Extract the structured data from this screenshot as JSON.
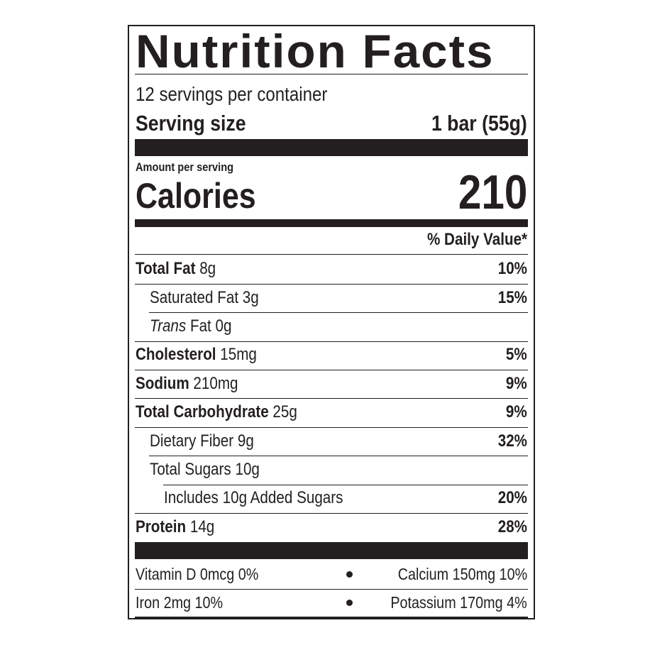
{
  "title": "Nutrition Facts",
  "servings_per_container": "12 servings per container",
  "serving_size": {
    "label": "Serving size",
    "value": "1 bar (55g)"
  },
  "amount_per_serving": "Amount per serving",
  "calories": {
    "label": "Calories",
    "value": "210"
  },
  "daily_value_header": "% Daily Value*",
  "nutrients": {
    "total_fat": {
      "name": "Total Fat",
      "amount": "8g",
      "dv": "10%"
    },
    "saturated_fat": {
      "name": "Saturated Fat",
      "amount": "3g",
      "dv": "15%"
    },
    "trans_fat": {
      "name": "Trans",
      "suffix": "Fat",
      "amount": "0g",
      "dv": ""
    },
    "cholesterol": {
      "name": "Cholesterol",
      "amount": "15mg",
      "dv": "5%"
    },
    "sodium": {
      "name": "Sodium",
      "amount": "210mg",
      "dv": "9%"
    },
    "total_carbohydrate": {
      "name": "Total Carbohydrate",
      "amount": "25g",
      "dv": "9%"
    },
    "dietary_fiber": {
      "name": "Dietary Fiber",
      "amount": "9g",
      "dv": "32%"
    },
    "total_sugars": {
      "name": "Total Sugars",
      "amount": "10g",
      "dv": ""
    },
    "added_sugars": {
      "prefix": "Includes",
      "amount": "10g",
      "name": "Added Sugars",
      "dv": "20%"
    },
    "protein": {
      "name": "Protein",
      "amount": "14g",
      "dv": "28%"
    }
  },
  "vitamins": {
    "vitamin_d": "Vitamin D 0mcg 0%",
    "calcium": "Calcium 150mg 10%",
    "iron": "Iron 2mg 10%",
    "potassium": "Potassium 170mg 4%"
  },
  "colors": {
    "ink": "#231f20",
    "background": "#ffffff"
  }
}
